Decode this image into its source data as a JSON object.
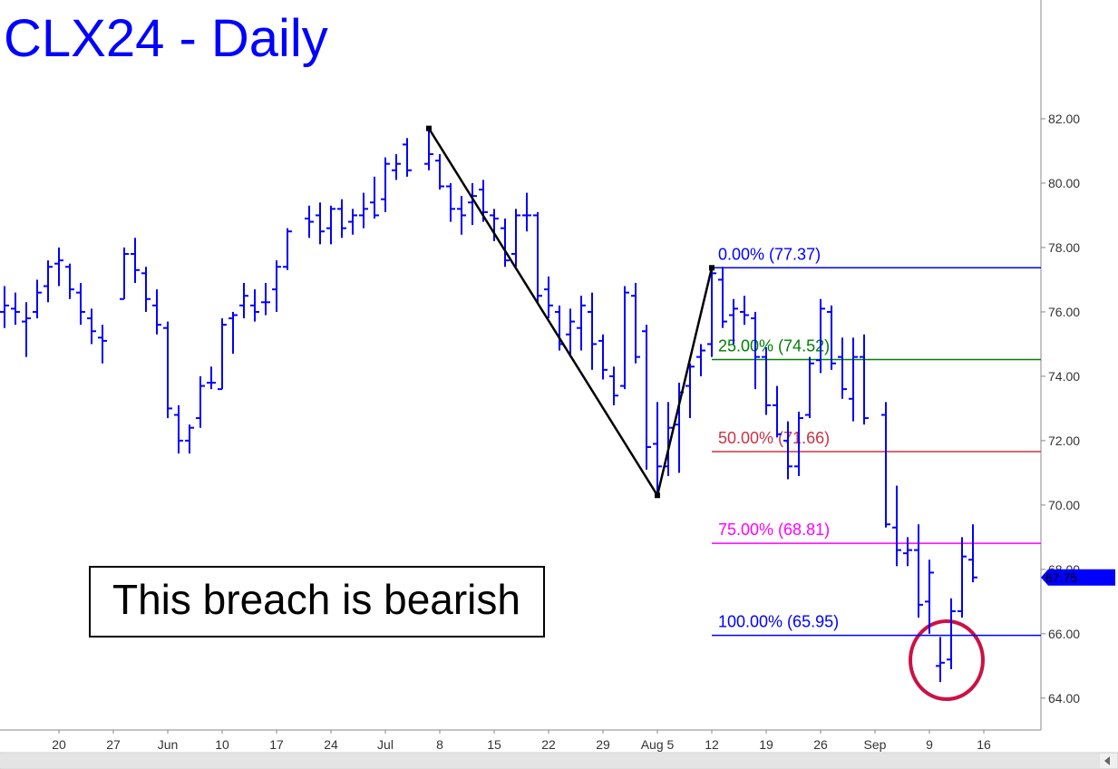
{
  "chart_data": {
    "type": "ohlc",
    "title": "CLX24 - Daily",
    "color": "#0000ff",
    "categories": [
      null,
      null,
      null,
      null,
      null,
      "20",
      null,
      null,
      null,
      null,
      "27",
      null,
      null,
      null,
      null,
      "Jun",
      null,
      null,
      null,
      null,
      "10",
      null,
      null,
      null,
      null,
      "17",
      null,
      null,
      null,
      null,
      "24",
      null,
      null,
      null,
      null,
      "Jul",
      null,
      null,
      null,
      null,
      "8",
      null,
      null,
      null,
      null,
      "15",
      null,
      null,
      null,
      null,
      "22",
      null,
      null,
      null,
      null,
      "29",
      null,
      null,
      null,
      null,
      "Aug 5",
      null,
      null,
      null,
      null,
      "12",
      null,
      null,
      null,
      null,
      "19",
      null,
      null,
      null,
      null,
      "26",
      null,
      null,
      null,
      null,
      "Sep",
      null,
      null,
      null,
      null,
      "9",
      null,
      null,
      null,
      null,
      "16",
      null,
      null,
      null,
      null,
      null
    ],
    "open": [
      76.0,
      76.1,
      75.7,
      76.0,
      76.8,
      77.5,
      77.4,
      76.6,
      75.8,
      75.2,
      null,
      76.4,
      77.8,
      77.2,
      76.2,
      75.5,
      72.8,
      72.0,
      72.7,
      73.8,
      73.6,
      75.8,
      76.2,
      76.2,
      76.3,
      76.7,
      77.4,
      null,
      78.9,
      79.0,
      78.6,
      79.2,
      78.8,
      79.0,
      79.4,
      79.5,
      80.4,
      81.2,
      null,
      80.6,
      80.7,
      79.9,
      79.2,
      79.4,
      79.8,
      79.0,
      78.6,
      77.8,
      79.0,
      79.0,
      76.7,
      76.0,
      75.3,
      75.5,
      76.0,
      75.1,
      74.0,
      73.7,
      76.5,
      75.4,
      71.9,
      71.2,
      72.5,
      73.7,
      74.6,
      75.0,
      77.0,
      75.9,
      76.0,
      75.8,
      74.6,
      73.1,
      72.0,
      71.2,
      72.8,
      74.5,
      76.0,
      74.6,
      73.3,
      74.6,
      null,
      72.8,
      69.3,
      68.5,
      68.6,
      67.0,
      65.0,
      65.2,
      66.7,
      68.3,
      null,
      null,
      null,
      null,
      null,
      null
    ],
    "high": [
      76.8,
      76.6,
      76.3,
      77.0,
      77.6,
      78.0,
      77.5,
      76.9,
      76.1,
      75.6,
      null,
      78.0,
      78.3,
      77.4,
      76.7,
      75.7,
      73.1,
      72.5,
      74.0,
      74.3,
      75.8,
      76.0,
      76.9,
      76.7,
      76.9,
      77.6,
      78.6,
      null,
      79.3,
      79.4,
      79.3,
      79.5,
      79.2,
      79.7,
      80.2,
      80.8,
      80.9,
      81.4,
      null,
      81.7,
      80.9,
      80.0,
      79.6,
      80.0,
      80.1,
      79.2,
      78.9,
      79.2,
      79.7,
      79.1,
      77.1,
      76.2,
      76.1,
      76.5,
      76.6,
      75.3,
      74.3,
      76.8,
      76.9,
      75.6,
      73.2,
      73.2,
      73.8,
      74.4,
      75.0,
      77.37,
      77.4,
      76.4,
      76.5,
      76.0,
      74.9,
      73.7,
      72.6,
      72.9,
      74.6,
      76.4,
      76.2,
      75.2,
      75.2,
      75.3,
      null,
      73.2,
      70.6,
      69.0,
      69.4,
      68.3,
      65.9,
      67.1,
      69.0,
      69.4,
      null,
      null,
      null,
      null,
      null,
      null
    ],
    "low": [
      75.5,
      75.6,
      74.6,
      75.8,
      76.3,
      76.8,
      76.4,
      75.6,
      75.0,
      74.4,
      null,
      76.4,
      76.9,
      76.0,
      75.3,
      72.7,
      71.6,
      71.6,
      72.4,
      73.6,
      73.6,
      74.7,
      75.8,
      75.7,
      75.9,
      76.0,
      77.3,
      null,
      78.3,
      78.1,
      78.1,
      78.3,
      78.4,
      78.6,
      78.9,
      79.1,
      80.1,
      80.2,
      null,
      80.4,
      79.8,
      78.8,
      78.4,
      78.7,
      78.8,
      78.2,
      77.4,
      77.4,
      78.5,
      76.3,
      75.8,
      74.8,
      74.6,
      74.8,
      74.2,
      73.9,
      73.1,
      73.6,
      74.4,
      71.1,
      70.3,
      70.9,
      71.0,
      72.7,
      74.0,
      74.6,
      75.5,
      75.0,
      75.6,
      73.6,
      72.8,
      72.1,
      70.8,
      70.9,
      72.7,
      74.1,
      74.2,
      73.3,
      72.6,
      72.5,
      null,
      69.3,
      68.1,
      68.1,
      66.5,
      66.0,
      64.5,
      64.9,
      66.5,
      67.6,
      null,
      null,
      null,
      null,
      null,
      null
    ],
    "close": [
      76.2,
      76.0,
      75.8,
      76.6,
      77.4,
      77.6,
      76.7,
      76.0,
      75.4,
      75.1,
      null,
      77.8,
      77.3,
      76.4,
      75.6,
      73.0,
      72.0,
      72.4,
      73.7,
      73.8,
      75.6,
      75.9,
      76.5,
      76.0,
      76.3,
      77.4,
      78.5,
      null,
      78.8,
      78.5,
      79.2,
      78.6,
      79.0,
      79.2,
      79.0,
      80.6,
      80.6,
      80.4,
      null,
      80.9,
      79.9,
      79.2,
      79.0,
      79.6,
      79.1,
      78.9,
      77.6,
      79.0,
      79.0,
      76.5,
      76.2,
      75.0,
      75.7,
      76.2,
      75.0,
      74.2,
      73.4,
      76.6,
      74.6,
      71.8,
      71.2,
      72.4,
      73.5,
      74.3,
      74.8,
      77.2,
      75.7,
      76.1,
      75.9,
      74.6,
      73.1,
      72.2,
      71.2,
      72.7,
      74.4,
      76.1,
      74.4,
      73.6,
      74.6,
      72.7,
      null,
      69.4,
      68.6,
      68.6,
      66.9,
      67.9,
      65.1,
      66.7,
      68.4,
      67.75,
      null,
      null,
      null,
      null,
      null,
      null
    ],
    "ylim": [
      63.01,
      85.69
    ],
    "yticks": [
      {
        "value": 64,
        "label": "64.00"
      },
      {
        "value": 66,
        "label": "66.00"
      },
      {
        "value": 68,
        "label": "68.00"
      },
      {
        "value": 70,
        "label": "70.00"
      },
      {
        "value": 72,
        "label": "72.00"
      },
      {
        "value": 74,
        "label": "74.00"
      },
      {
        "value": 76,
        "label": "76.00"
      },
      {
        "value": 78,
        "label": "78.00"
      },
      {
        "value": 80,
        "label": "80.00"
      },
      {
        "value": 82,
        "label": "82.00"
      }
    ],
    "swing_line": {
      "x": [
        39,
        60,
        65
      ],
      "y": [
        81.7,
        70.3,
        77.37
      ],
      "color": "#000000"
    },
    "fib_levels": [
      {
        "value": 77.37,
        "label": "0.00% (77.37)",
        "color": "#0000ff"
      },
      {
        "value": 74.52,
        "label": "25.00% (74.52)",
        "color": "#008000"
      },
      {
        "value": 71.66,
        "label": "50.00% (71.66)",
        "color": "#cc3344"
      },
      {
        "value": 68.81,
        "label": "75.00% (68.81)",
        "color": "#ff00ff"
      },
      {
        "value": 65.95,
        "label": "100.00% (65.95)",
        "color": "#0000ff"
      }
    ],
    "last_price": {
      "value": 67.75,
      "label": "67.75"
    },
    "annotation": "This breach is bearish"
  }
}
